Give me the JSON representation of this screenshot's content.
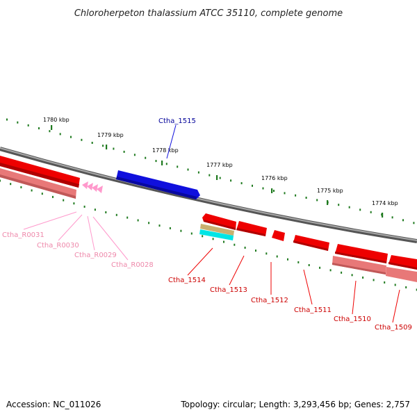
{
  "title": "Chloroherpeton thalassium ATCC 35110, complete genome",
  "footer": {
    "accession": "Accession: NC_011026",
    "topology": "Topology: circular; Length: 3,293,456 bp; Genes: 2,757"
  },
  "colors": {
    "backbone": "#7a7a7a",
    "tick": "#1f7a1f",
    "forward_gene": "#1010dd",
    "forward_label": "#000099",
    "reverse_gene": "#ee0000",
    "reverse_gene_dark": "#b00000",
    "reverse_label": "#cc0000",
    "cds_bar": "#e87878",
    "rna": "#ff99cc",
    "rna_label": "#ee88aa",
    "misc_tan": "#c8b070",
    "misc_cyan": "#00e5e5"
  },
  "ticks": {
    "labels": [
      "1780 kbp",
      "1779 kbp",
      "1778 kbp",
      "1777 kbp",
      "1776 kbp",
      "1775 kbp",
      "1774 kbp"
    ]
  },
  "genes": {
    "forward": [
      {
        "name": "Ctha_1515"
      }
    ],
    "reverse": [
      {
        "name": "Ctha_1514"
      },
      {
        "name": "Ctha_1513"
      },
      {
        "name": "Ctha_1512"
      },
      {
        "name": "Ctha_1511"
      },
      {
        "name": "Ctha_1510"
      },
      {
        "name": "Ctha_1509"
      }
    ],
    "rna": [
      {
        "name": "Ctha_R0031"
      },
      {
        "name": "Ctha_R0030"
      },
      {
        "name": "Ctha_R0029"
      },
      {
        "name": "Ctha_R0028"
      }
    ]
  }
}
